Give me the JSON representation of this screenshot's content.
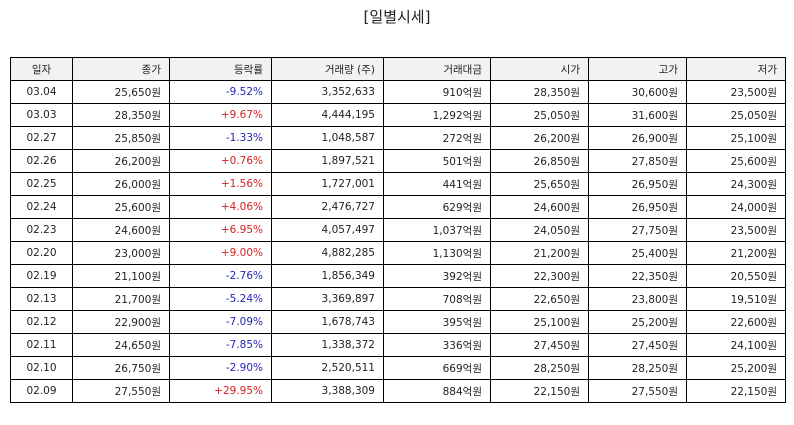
{
  "title": "[일별시세]",
  "colors": {
    "up": "#d62020",
    "down": "#2525b8"
  },
  "table": {
    "headers": [
      "일자",
      "종가",
      "등락률",
      "거래량 (주)",
      "거래대금",
      "시가",
      "고가",
      "저가"
    ],
    "rows": [
      {
        "date": "03.04",
        "close": "25,650원",
        "change": "-9.52%",
        "dir": "down",
        "volume": "3,352,633",
        "amount": "910억원",
        "open": "28,350원",
        "high": "30,600원",
        "low": "23,500원"
      },
      {
        "date": "03.03",
        "close": "28,350원",
        "change": "+9.67%",
        "dir": "up",
        "volume": "4,444,195",
        "amount": "1,292억원",
        "open": "25,050원",
        "high": "31,600원",
        "low": "25,050원"
      },
      {
        "date": "02.27",
        "close": "25,850원",
        "change": "-1.33%",
        "dir": "down",
        "volume": "1,048,587",
        "amount": "272억원",
        "open": "26,200원",
        "high": "26,900원",
        "low": "25,100원"
      },
      {
        "date": "02.26",
        "close": "26,200원",
        "change": "+0.76%",
        "dir": "up",
        "volume": "1,897,521",
        "amount": "501억원",
        "open": "26,850원",
        "high": "27,850원",
        "low": "25,600원"
      },
      {
        "date": "02.25",
        "close": "26,000원",
        "change": "+1.56%",
        "dir": "up",
        "volume": "1,727,001",
        "amount": "441억원",
        "open": "25,650원",
        "high": "26,950원",
        "low": "24,300원"
      },
      {
        "date": "02.24",
        "close": "25,600원",
        "change": "+4.06%",
        "dir": "up",
        "volume": "2,476,727",
        "amount": "629억원",
        "open": "24,600원",
        "high": "26,950원",
        "low": "24,000원"
      },
      {
        "date": "02.23",
        "close": "24,600원",
        "change": "+6.95%",
        "dir": "up",
        "volume": "4,057,497",
        "amount": "1,037억원",
        "open": "24,050원",
        "high": "27,750원",
        "low": "23,500원"
      },
      {
        "date": "02.20",
        "close": "23,000원",
        "change": "+9.00%",
        "dir": "up",
        "volume": "4,882,285",
        "amount": "1,130억원",
        "open": "21,200원",
        "high": "25,400원",
        "low": "21,200원"
      },
      {
        "date": "02.19",
        "close": "21,100원",
        "change": "-2.76%",
        "dir": "down",
        "volume": "1,856,349",
        "amount": "392억원",
        "open": "22,300원",
        "high": "22,350원",
        "low": "20,550원"
      },
      {
        "date": "02.13",
        "close": "21,700원",
        "change": "-5.24%",
        "dir": "down",
        "volume": "3,369,897",
        "amount": "708억원",
        "open": "22,650원",
        "high": "23,800원",
        "low": "19,510원"
      },
      {
        "date": "02.12",
        "close": "22,900원",
        "change": "-7.09%",
        "dir": "down",
        "volume": "1,678,743",
        "amount": "395억원",
        "open": "25,100원",
        "high": "25,200원",
        "low": "22,600원"
      },
      {
        "date": "02.11",
        "close": "24,650원",
        "change": "-7.85%",
        "dir": "down",
        "volume": "1,338,372",
        "amount": "336억원",
        "open": "27,450원",
        "high": "27,450원",
        "low": "24,100원"
      },
      {
        "date": "02.10",
        "close": "26,750원",
        "change": "-2.90%",
        "dir": "down",
        "volume": "2,520,511",
        "amount": "669억원",
        "open": "28,250원",
        "high": "28,250원",
        "low": "25,200원"
      },
      {
        "date": "02.09",
        "close": "27,550원",
        "change": "+29.95%",
        "dir": "up",
        "volume": "3,388,309",
        "amount": "884억원",
        "open": "22,150원",
        "high": "27,550원",
        "low": "22,150원"
      }
    ]
  }
}
